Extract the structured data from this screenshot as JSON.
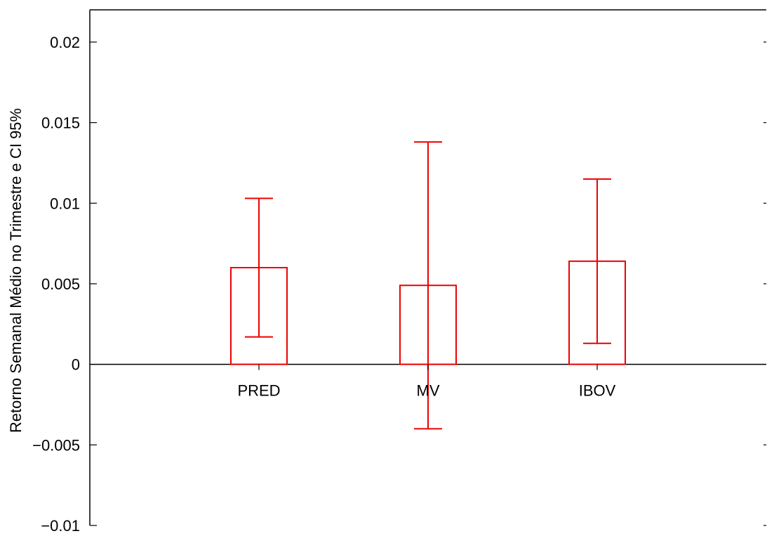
{
  "chart_data": {
    "type": "bar",
    "title": "",
    "xlabel": "",
    "ylabel": "Retorno Semanal Médio no Trimestre e CI 95%",
    "ylim": [
      -0.01,
      0.022
    ],
    "yticks": [
      -0.01,
      -0.005,
      0,
      0.005,
      0.01,
      0.015,
      0.02
    ],
    "ytick_labels": [
      "−0.01",
      "−0.005",
      "0",
      "0.005",
      "0.01",
      "0.015",
      "0.02"
    ],
    "categories": [
      "PRED",
      "MV",
      "IBOV"
    ],
    "x_positions": [
      1,
      2,
      3
    ],
    "xlim": [
      0,
      4
    ],
    "values": [
      0.006,
      0.0049,
      0.0064
    ],
    "ci_lower": [
      0.0017,
      -0.004,
      0.0013
    ],
    "ci_upper": [
      0.0103,
      0.0138,
      0.0115
    ],
    "bar_style": "outline",
    "error_bars": true,
    "grid": false,
    "legend": "none",
    "colors": {
      "bars": "#ee0000",
      "axes": "#000000"
    }
  }
}
